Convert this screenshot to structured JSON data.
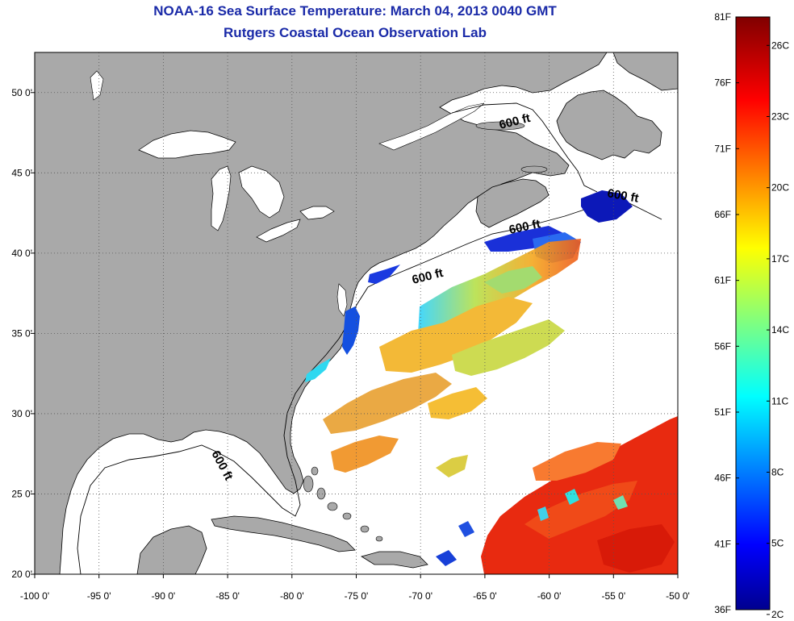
{
  "title": {
    "line1": "NOAA-16 Sea Surface Temperature:  March 04, 2013 0040 GMT",
    "line2": "Rutgers Coastal Ocean Observation Lab"
  },
  "map": {
    "lon_range": [
      -100,
      -50
    ],
    "lat_range": [
      20,
      52.5
    ],
    "lon_ticks": [
      {
        "value": -100,
        "label": "-100 0'"
      },
      {
        "value": -95,
        "label": "-95 0'"
      },
      {
        "value": -90,
        "label": "-90 0'"
      },
      {
        "value": -85,
        "label": "-85 0'"
      },
      {
        "value": -80,
        "label": "-80 0'"
      },
      {
        "value": -75,
        "label": "-75 0'"
      },
      {
        "value": -70,
        "label": "-70 0'"
      },
      {
        "value": -65,
        "label": "-65 0'"
      },
      {
        "value": -60,
        "label": "-60 0'"
      },
      {
        "value": -55,
        "label": "-55 0'"
      },
      {
        "value": -50,
        "label": "-50 0'"
      }
    ],
    "lat_ticks": [
      {
        "value": 20,
        "label": "20 0'"
      },
      {
        "value": 25,
        "label": "25 0'"
      },
      {
        "value": 30,
        "label": "30 0'"
      },
      {
        "value": 35,
        "label": "35 0'"
      },
      {
        "value": 40,
        "label": "40 0'"
      },
      {
        "value": 45,
        "label": "45 0'"
      },
      {
        "value": 50,
        "label": "50 0'"
      }
    ],
    "grid": "dotted",
    "contour_labels": [
      "600 ft",
      "600 ft",
      "600 ft",
      "600 ft",
      "600 ft"
    ],
    "colors": {
      "land": "#a9a9a9",
      "ocean": "#ffffff",
      "coastline": "#000000"
    }
  },
  "colorbar": {
    "fahrenheit_labels": [
      "81F",
      "76F",
      "71F",
      "66F",
      "61F",
      "56F",
      "51F",
      "46F",
      "41F",
      "36F"
    ],
    "celsius_labels": [
      "26C",
      "23C",
      "20C",
      "17C",
      "14C",
      "11C",
      "8C",
      "5C",
      "2C"
    ],
    "f_range": [
      36,
      81
    ],
    "c_range": [
      2.2,
      27.2
    ],
    "colormap": "jet"
  }
}
